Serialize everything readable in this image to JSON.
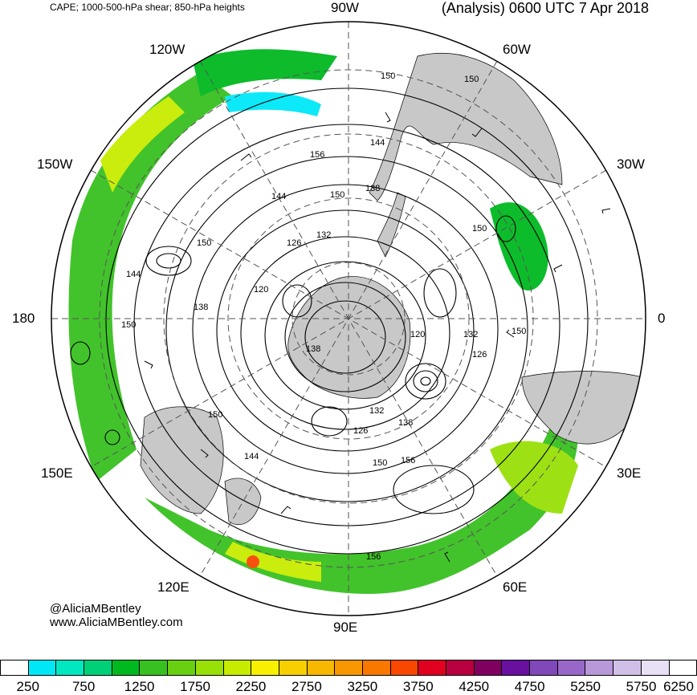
{
  "header": {
    "description": "CAPE; 1000-500-hPa shear; 850-hPa heights",
    "analysis": "(Analysis) 0600 UTC 7 Apr 2018"
  },
  "longitude_labels": {
    "n90w": "90W",
    "n120w": "120W",
    "n60w": "60W",
    "n150w": "150W",
    "n30w": "30W",
    "n180": "180",
    "n0": "0",
    "n150e": "150E",
    "n30e": "30E",
    "n120e": "120E",
    "n60e": "60E",
    "n90e": "90E"
  },
  "contour_labels": [
    {
      "id": "c150a",
      "text": "150"
    },
    {
      "id": "c150b",
      "text": "150"
    },
    {
      "id": "c156a",
      "text": "156"
    },
    {
      "id": "c144a",
      "text": "144"
    },
    {
      "id": "c144b",
      "text": "144"
    },
    {
      "id": "c150c",
      "text": "150"
    },
    {
      "id": "c138a",
      "text": "138"
    },
    {
      "id": "c126a",
      "text": "126"
    },
    {
      "id": "c132a",
      "text": "132"
    },
    {
      "id": "c150d",
      "text": "150"
    },
    {
      "id": "c144c",
      "text": "144"
    },
    {
      "id": "c120a",
      "text": "120"
    },
    {
      "id": "c138b",
      "text": "138"
    },
    {
      "id": "c150e",
      "text": "150"
    },
    {
      "id": "c138c",
      "text": "138"
    },
    {
      "id": "c120b",
      "text": "120"
    },
    {
      "id": "c132b",
      "text": "132"
    },
    {
      "id": "c126b",
      "text": "126"
    },
    {
      "id": "c150f",
      "text": "150"
    },
    {
      "id": "c150g",
      "text": "150"
    },
    {
      "id": "c150h",
      "text": "150"
    },
    {
      "id": "c132c",
      "text": "132"
    },
    {
      "id": "c138d",
      "text": "138"
    },
    {
      "id": "c126c",
      "text": "126"
    },
    {
      "id": "c150i",
      "text": "150"
    },
    {
      "id": "c156b",
      "text": "156"
    },
    {
      "id": "c144d",
      "text": "144"
    },
    {
      "id": "c156c",
      "text": "156"
    }
  ],
  "credits": {
    "handle": "@AliciaMBentley",
    "site": "www.AliciaMBentley.com"
  },
  "colorbar": {
    "colors": [
      "#ffffff",
      "#00e8f8",
      "#00e8c0",
      "#00d078",
      "#00b820",
      "#38c020",
      "#68d010",
      "#98e008",
      "#c8ec00",
      "#f8f000",
      "#f8d000",
      "#f8b800",
      "#f89800",
      "#f87800",
      "#f84800",
      "#e00020",
      "#b80040",
      "#800060",
      "#6810a0",
      "#8048b8",
      "#9868c8",
      "#b898d8",
      "#d0c0e8",
      "#e8e0f4",
      "#ffffff"
    ],
    "labels": [
      "250",
      "750",
      "1250",
      "1750",
      "2250",
      "2750",
      "3250",
      "3750",
      "4250",
      "4750",
      "5250",
      "5750",
      "6250"
    ]
  },
  "map_colors": {
    "land": "#c8c8c8",
    "ocean": "#ffffff",
    "cape_low": "#00e8f8",
    "cape_mid": "#38c020",
    "cape_high": "#c8ec00",
    "cape_peak": "#f84800"
  }
}
